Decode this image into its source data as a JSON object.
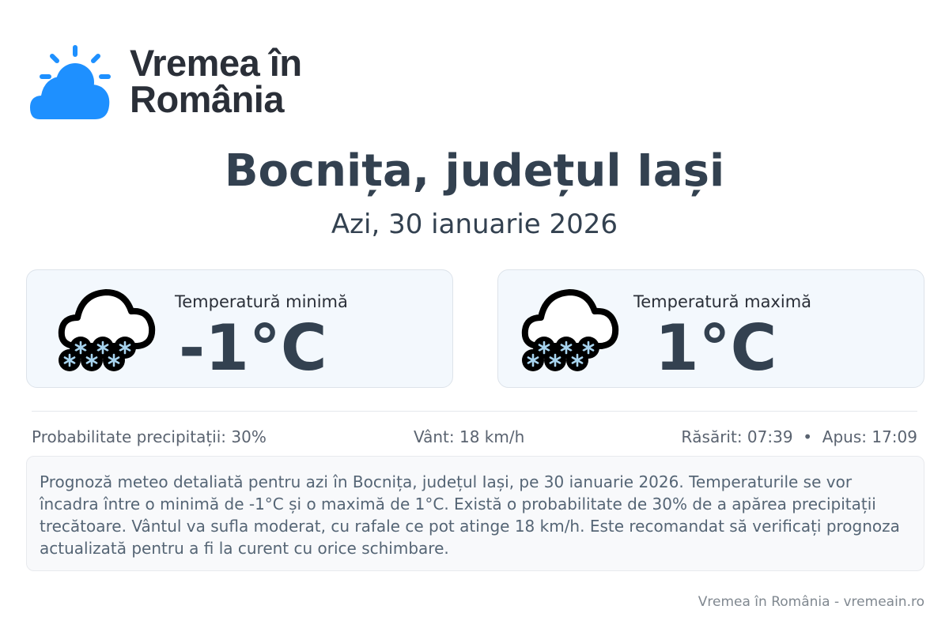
{
  "logo": {
    "line1": "Vremea în",
    "line2": "România",
    "brand_color": "#1e90ff"
  },
  "title": "Bocnița, județul Iași",
  "subtitle": "Azi, 30 ianuarie 2026",
  "cards": [
    {
      "label": "Temperatură minimă",
      "value": "-1°C",
      "icon": "snow-cloud-icon"
    },
    {
      "label": "Temperatură maximă",
      "value": "1°C",
      "icon": "snow-cloud-icon"
    }
  ],
  "stats": {
    "precip": "Probabilitate precipitații: 30%",
    "wind": "Vânt: 18 km/h",
    "sun": "Răsărit: 07:39  •  Apus: 17:09"
  },
  "description": "Prognoză meteo detaliată pentru azi în Bocnița, județul Iași, pe 30 ianuarie 2026. Temperaturile se vor încadra între o minimă de -1°C și o maximă de 1°C. Există o probabilitate de 30% de a apărea precipitații trecătoare. Vântul va sufla moderat, cu rafale ce pot atinge 18 km/h. Este recomandat să verificați prognoza actualizată pentru a fi la curent cu orice schimbare.",
  "footer": "Vremea în România - vremeain.ro"
}
